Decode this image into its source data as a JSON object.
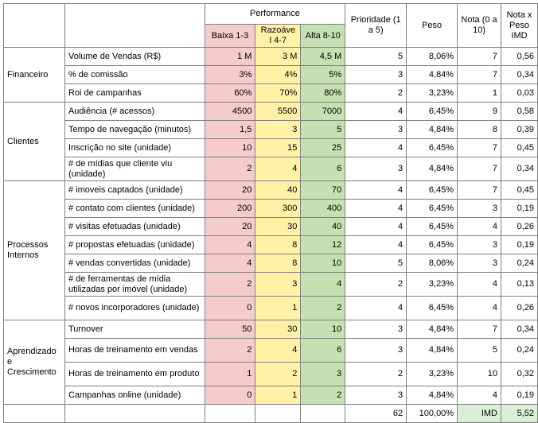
{
  "header": {
    "performance": "Performance",
    "low": "Baixa 1-3",
    "mid": "Razoáve l 4-7",
    "high": "Alta 8-10",
    "priority": "Prioridade (1 a 5)",
    "weight": "Peso",
    "grade": "Nota (0 a 10)",
    "grade_weight": "Nota x Peso IMD"
  },
  "categories": [
    {
      "name": "Financeiro",
      "rows": [
        {
          "ind": "Volume de Vendas (R$)",
          "low": "1 M",
          "mid": "3 M",
          "high": "4,5 M",
          "prio": "5",
          "peso": "8,06%",
          "nota": "7",
          "np": "0,56"
        },
        {
          "ind": "% de comissão",
          "low": "3%",
          "mid": "4%",
          "high": "5%",
          "prio": "3",
          "peso": "4,84%",
          "nota": "7",
          "np": "0,34"
        },
        {
          "ind": "Roi de campanhas",
          "low": "60%",
          "mid": "70%",
          "high": "80%",
          "prio": "2",
          "peso": "3,23%",
          "nota": "1",
          "np": "0,03"
        }
      ]
    },
    {
      "name": "Clientes",
      "rows": [
        {
          "ind": "Audiência (# acessos)",
          "low": "4500",
          "mid": "5500",
          "high": "7000",
          "prio": "4",
          "peso": "6,45%",
          "nota": "9",
          "np": "0,58"
        },
        {
          "ind": "Tempo de navegação (minutos)",
          "low": "1,5",
          "mid": "3",
          "high": "5",
          "prio": "3",
          "peso": "4,84%",
          "nota": "8",
          "np": "0,39"
        },
        {
          "ind": "Inscrição no site (unidade)",
          "low": "10",
          "mid": "15",
          "high": "25",
          "prio": "4",
          "peso": "6,45%",
          "nota": "7",
          "np": "0,45"
        },
        {
          "ind": "# de mídias que cliente viu (unidade)",
          "low": "2",
          "mid": "4",
          "high": "6",
          "prio": "3",
          "peso": "4,84%",
          "nota": "7",
          "np": "0,34"
        }
      ]
    },
    {
      "name": "Processos Internos",
      "rows": [
        {
          "ind": "# imoveis captados (unidade)",
          "low": "20",
          "mid": "40",
          "high": "70",
          "prio": "4",
          "peso": "6,45%",
          "nota": "7",
          "np": "0,45"
        },
        {
          "ind": "# contato com clientes (unidade)",
          "low": "200",
          "mid": "300",
          "high": "400",
          "prio": "4",
          "peso": "6,45%",
          "nota": "3",
          "np": "0,19"
        },
        {
          "ind": "# visitas efetuadas (unidade)",
          "low": "20",
          "mid": "30",
          "high": "40",
          "prio": "4",
          "peso": "6,45%",
          "nota": "4",
          "np": "0,26"
        },
        {
          "ind": "# propostas efetuadas (unidade)",
          "low": "4",
          "mid": "8",
          "high": "12",
          "prio": "4",
          "peso": "6,45%",
          "nota": "3",
          "np": "0,19"
        },
        {
          "ind": "# vendas convertidas (unidade)",
          "low": "4",
          "mid": "8",
          "high": "10",
          "prio": "5",
          "peso": "8,06%",
          "nota": "3",
          "np": "0,24"
        },
        {
          "ind": "# de ferramentas de mídia utilizadas por imóvel (unidade)",
          "low": "2",
          "mid": "3",
          "high": "4",
          "prio": "2",
          "peso": "3,23%",
          "nota": "4",
          "np": "0,13"
        },
        {
          "ind": "# novos incorporadores (unidade)",
          "low": "0",
          "mid": "1",
          "high": "2",
          "prio": "4",
          "peso": "6,45%",
          "nota": "4",
          "np": "0,26"
        }
      ]
    },
    {
      "name": "Aprendizado e Crescimento",
      "rows": [
        {
          "ind": "Turnover",
          "low": "50",
          "mid": "30",
          "high": "10",
          "prio": "3",
          "peso": "4,84%",
          "nota": "7",
          "np": "0,34"
        },
        {
          "ind": "Horas de treinamento em vendas",
          "low": "2",
          "mid": "4",
          "high": "6",
          "prio": "3",
          "peso": "4,84%",
          "nota": "5",
          "np": "0,24"
        },
        {
          "ind": "Horas de treinamento em produto",
          "low": "1",
          "mid": "2",
          "high": "3",
          "prio": "2",
          "peso": "3,23%",
          "nota": "10",
          "np": "0,32"
        },
        {
          "ind": "Campanhas online (unidade)",
          "low": "0",
          "mid": "1",
          "high": "2",
          "prio": "3",
          "peso": "4,84%",
          "nota": "4",
          "np": "0,19"
        }
      ]
    }
  ],
  "totals": {
    "prio": "62",
    "peso": "100,00%",
    "label": "IMD",
    "np": "5,52"
  },
  "colors": {
    "low": "#f4cccc",
    "mid": "#fff2a6",
    "high": "#c5e0b3",
    "imd": "#dbefd6"
  }
}
